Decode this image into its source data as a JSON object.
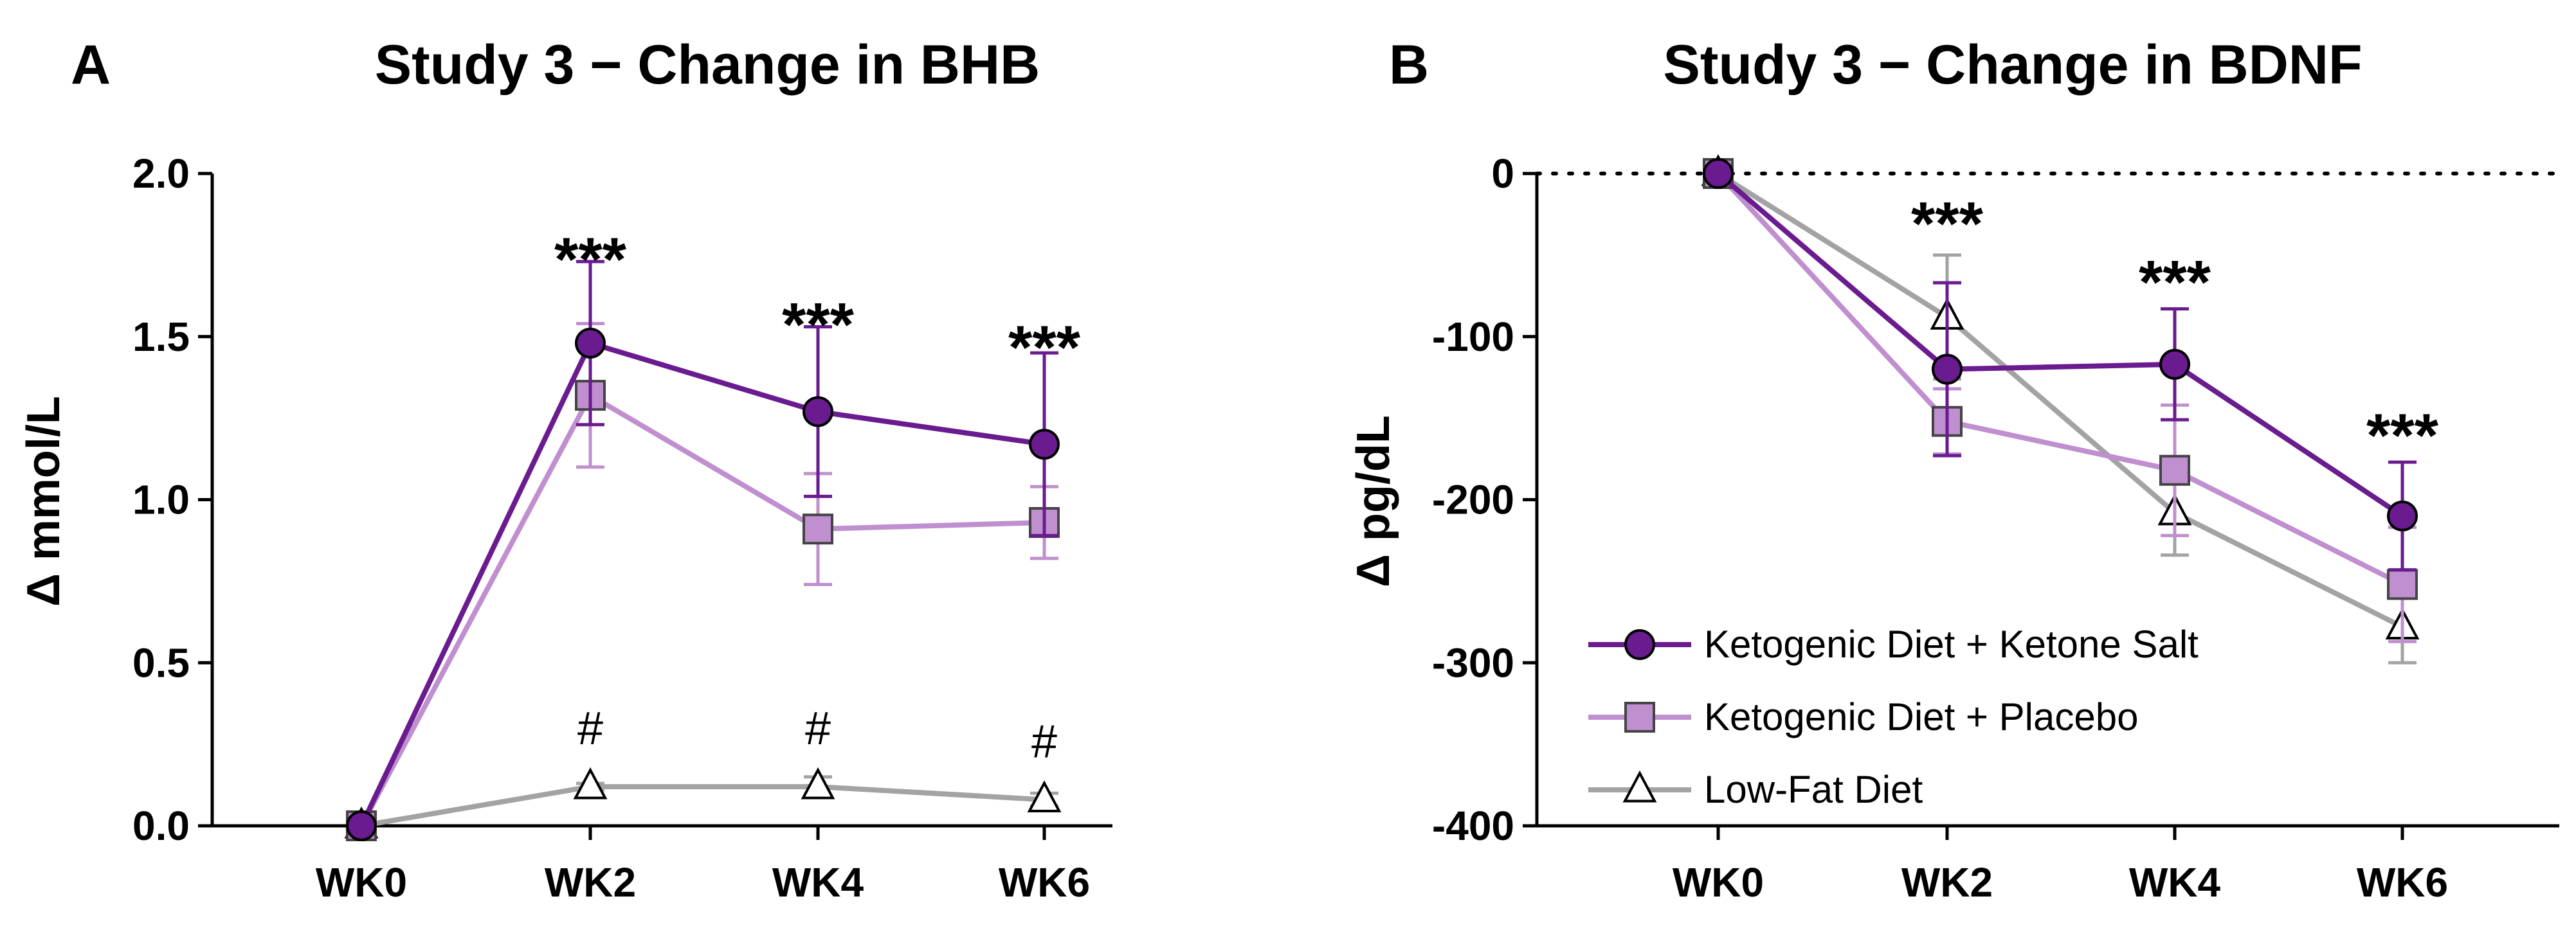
{
  "panels": [
    {
      "letter": "A",
      "chart_data": {
        "type": "line",
        "title": "Study 3 − Change in BHB",
        "ylabel": "Δ mmol/L",
        "xlabel": "",
        "categories": [
          "WK0",
          "WK2",
          "WK4",
          "WK6"
        ],
        "ylim": [
          0,
          2.0
        ],
        "yticks": [
          0.0,
          0.5,
          1.0,
          1.5,
          2.0
        ],
        "ytick_labels": [
          "0.0",
          "0.5",
          "1.0",
          "1.5",
          "2.0"
        ],
        "zero_reference_line": false,
        "series": [
          {
            "name": "Ketogenic Diet + Ketone Salt",
            "marker": "circle",
            "color": "#6a1b8f",
            "values": [
              0,
              1.48,
              1.27,
              1.17
            ],
            "error": [
              0,
              0.25,
              0.26,
              0.28
            ]
          },
          {
            "name": "Ketogenic Diet + Placebo",
            "marker": "square",
            "color": "#c08fcf",
            "values": [
              0,
              1.32,
              0.91,
              0.93
            ],
            "error": [
              0,
              0.22,
              0.17,
              0.11
            ]
          },
          {
            "name": "Low-Fat Diet",
            "marker": "triangle",
            "color": "#a3a3a3",
            "values": [
              0,
              0.12,
              0.12,
              0.08
            ],
            "error": [
              0,
              0.01,
              0.03,
              0.02
            ]
          }
        ],
        "annotations": [
          {
            "category": "WK2",
            "y": 1.78,
            "text": "***"
          },
          {
            "category": "WK4",
            "y": 1.58,
            "text": "***"
          },
          {
            "category": "WK6",
            "y": 1.51,
            "text": "***"
          },
          {
            "category": "WK2",
            "y": 0.25,
            "text": "#"
          },
          {
            "category": "WK4",
            "y": 0.25,
            "text": "#"
          },
          {
            "category": "WK6",
            "y": 0.21,
            "text": "#"
          }
        ],
        "legend": null
      }
    },
    {
      "letter": "B",
      "chart_data": {
        "type": "line",
        "title": "Study 3 − Change in BDNF",
        "ylabel": "Δ pg/dL",
        "xlabel": "",
        "categories": [
          "WK0",
          "WK2",
          "WK4",
          "WK6"
        ],
        "ylim": [
          -400,
          0
        ],
        "yticks": [
          0,
          -100,
          -200,
          -300,
          -400
        ],
        "ytick_labels": [
          "0",
          "-100",
          "-200",
          "-300",
          "-400"
        ],
        "zero_reference_line": true,
        "series": [
          {
            "name": "Ketogenic Diet + Ketone Salt",
            "marker": "circle",
            "color": "#6a1b8f",
            "values": [
              0,
              -120,
              -117,
              -210
            ],
            "error": [
              0,
              53,
              34,
              33
            ]
          },
          {
            "name": "Ketogenic Diet + Placebo",
            "marker": "square",
            "color": "#c08fcf",
            "values": [
              0,
              -152,
              -182,
              -252
            ],
            "error": [
              0,
              20,
              40,
              35
            ]
          },
          {
            "name": "Low-Fat Diet",
            "marker": "triangle",
            "color": "#a3a3a3",
            "values": [
              0,
              -88,
              -208,
              -278
            ],
            "error": [
              0,
              38,
              26,
              22
            ]
          }
        ],
        "annotations": [
          {
            "category": "WK2",
            "y": -22,
            "text": "***"
          },
          {
            "category": "WK4",
            "y": -58,
            "text": "***"
          },
          {
            "category": "WK6",
            "y": -152,
            "text": "***"
          }
        ],
        "legend": {
          "placement": "bottom-left",
          "entries": [
            "Ketogenic Diet + Ketone Salt",
            "Ketogenic Diet + Placebo",
            "Low-Fat Diet"
          ]
        }
      }
    }
  ]
}
